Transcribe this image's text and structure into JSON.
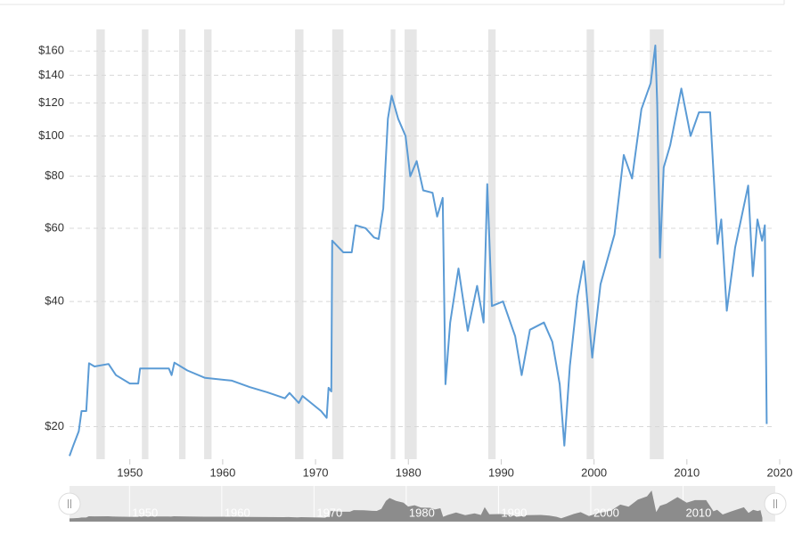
{
  "chart_data": {
    "type": "line",
    "log_y": true,
    "grid": true,
    "xlim": [
      1943.5,
      2020
    ],
    "ylim": [
      16.7,
      170
    ],
    "xticks": [
      1950,
      1960,
      1970,
      1980,
      1990,
      2000,
      2010,
      2020
    ],
    "yticks": [
      {
        "value": 20,
        "label": "$20"
      },
      {
        "value": 40,
        "label": "$40"
      },
      {
        "value": 60,
        "label": "$60"
      },
      {
        "value": 80,
        "label": "$80"
      },
      {
        "value": 100,
        "label": "$100"
      },
      {
        "value": 120,
        "label": "$120"
      },
      {
        "value": 140,
        "label": "$140"
      },
      {
        "value": 160,
        "label": "$160"
      }
    ],
    "recession_color": "#e6e6e6",
    "recession_bands": [
      [
        1946.4,
        1947.3
      ],
      [
        1951.3,
        1952.0
      ],
      [
        1955.3,
        1956.0
      ],
      [
        1958.0,
        1958.8
      ],
      [
        1967.8,
        1968.7
      ],
      [
        1971.8,
        1973.0
      ],
      [
        1978.1,
        1978.6
      ],
      [
        1979.6,
        1980.9
      ],
      [
        1988.6,
        1989.4
      ],
      [
        1999.2,
        2000.0
      ],
      [
        2006.0,
        2007.5
      ]
    ],
    "series": [
      {
        "color": "#5b9bd5",
        "x": [
          1943.5,
          1943.9,
          1944.5,
          1944.8,
          1945.3,
          1945.6,
          1946.2,
          1947.7,
          1948.5,
          1950.0,
          1950.9,
          1951.1,
          1954.2,
          1954.5,
          1954.8,
          1956.2,
          1958.1,
          1961.0,
          1962.9,
          1964.8,
          1966.7,
          1967.2,
          1968.2,
          1968.6,
          1970.6,
          1971.2,
          1971.4,
          1971.7,
          1971.8,
          1973.0,
          1973.9,
          1974.3,
          1975.4,
          1976.3,
          1976.8,
          1977.3,
          1977.8,
          1978.2,
          1978.9,
          1979.7,
          1980.2,
          1980.9,
          1981.6,
          1982.6,
          1983.1,
          1983.7,
          1984.0,
          1984.5,
          1985.4,
          1986.4,
          1987.4,
          1988.1,
          1988.5,
          1989.0,
          1990.2,
          1991.5,
          1992.2,
          1993.1,
          1994.6,
          1995.5,
          1996.3,
          1996.8,
          1997.4,
          1998.2,
          1998.9,
          1999.8,
          2000.7,
          2002.2,
          2003.2,
          2004.1,
          2005.1,
          2006.1,
          2006.6,
          2006.8,
          2007.1,
          2007.5,
          2008.2,
          2009.4,
          2010.4,
          2011.3,
          2012.5,
          2013.3,
          2013.7,
          2014.3,
          2015.2,
          2016.6,
          2017.1,
          2017.6,
          2018.1,
          2018.4,
          2018.6
        ],
        "values": [
          17,
          18,
          19.5,
          21.8,
          21.8,
          28.4,
          27.9,
          28.3,
          26.6,
          25.4,
          25.4,
          27.6,
          27.6,
          26.6,
          28.5,
          27.3,
          26.2,
          25.8,
          24.9,
          24.2,
          23.4,
          24.1,
          22.8,
          23.7,
          21.8,
          21.0,
          24.8,
          24.3,
          56,
          52.5,
          52.5,
          61,
          60,
          57,
          56.5,
          67,
          110,
          125,
          110,
          100,
          80,
          87,
          74,
          73,
          64,
          71,
          25.3,
          35.6,
          48,
          34,
          43.6,
          35.6,
          76.6,
          39,
          40,
          33,
          26.6,
          34.2,
          35.6,
          32,
          25.3,
          18,
          28,
          41,
          50,
          29.3,
          44,
          58,
          90,
          79,
          116,
          134,
          165,
          120,
          51,
          84,
          95,
          130,
          100,
          114,
          114,
          55,
          63,
          38,
          54,
          76,
          46,
          63,
          56,
          61,
          20.3
        ]
      }
    ],
    "navigator": {
      "fill": "#8c8c8c",
      "background": "#ececec"
    }
  }
}
